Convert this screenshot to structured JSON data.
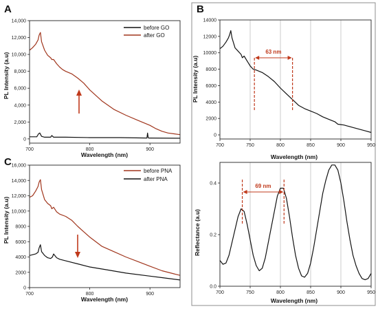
{
  "colors": {
    "brown": "#a0351c",
    "black": "#111111",
    "grid": "#bfbfbf",
    "annot": "#c0391b"
  },
  "panel_labels": [
    "A",
    "B",
    "C"
  ],
  "chart_data": [
    {
      "id": "A",
      "type": "line",
      "xlabel": "Wavelength (nm)",
      "ylabel": "PL Intensity (a.u)",
      "xlim": [
        700,
        950
      ],
      "ylim": [
        -500,
        14000
      ],
      "xticks": [
        700,
        800,
        900
      ],
      "xtick_labels": [
        "700",
        "800",
        "900"
      ],
      "yticks": [
        0,
        2000,
        4000,
        6000,
        8000,
        10000,
        12000,
        14000
      ],
      "ytick_labels": [
        "0",
        "2,000",
        "4,000",
        "6,000",
        "8,000",
        "10,000",
        "12,000",
        "14,000"
      ],
      "grid": false,
      "legend": "top-right",
      "series": [
        {
          "name": "before GO",
          "color": "black",
          "x": [
            700,
            710,
            712,
            715,
            717,
            720,
            725,
            735,
            737,
            740,
            760,
            800,
            850,
            895,
            896,
            897,
            898,
            900,
            950
          ],
          "y": [
            250,
            250,
            250,
            600,
            700,
            300,
            200,
            200,
            400,
            200,
            200,
            150,
            150,
            100,
            700,
            150,
            100,
            100,
            80
          ]
        },
        {
          "name": "after GO",
          "color": "brown",
          "x": [
            700,
            705,
            710,
            714,
            716,
            718,
            720,
            725,
            730,
            735,
            737,
            740,
            745,
            750,
            755,
            760,
            770,
            780,
            790,
            800,
            820,
            840,
            860,
            880,
            900,
            910,
            920,
            930,
            940,
            950
          ],
          "y": [
            10500,
            10800,
            11200,
            11700,
            12300,
            12600,
            11500,
            10500,
            9900,
            9600,
            9400,
            9400,
            8900,
            8500,
            8200,
            8000,
            7700,
            7200,
            6600,
            5800,
            4500,
            3500,
            2800,
            2200,
            1600,
            1200,
            900,
            700,
            600,
            500
          ]
        }
      ],
      "annotations": [
        "arrow-up"
      ]
    },
    {
      "id": "C",
      "type": "line",
      "xlabel": "Wavelength (nm)",
      "ylabel": "PL Intensity (a.u)",
      "xlim": [
        700,
        950
      ],
      "ylim": [
        0,
        16000
      ],
      "xticks": [
        700,
        800,
        900
      ],
      "xtick_labels": [
        "700",
        "800",
        "900"
      ],
      "yticks": [
        0,
        2000,
        4000,
        6000,
        8000,
        10000,
        12000,
        14000,
        16000
      ],
      "ytick_labels": [
        "0",
        "2000",
        "4000",
        "6000",
        "8000",
        "10,000",
        "12,000",
        "14,000",
        "16,000"
      ],
      "grid": false,
      "legend": "top-right",
      "series": [
        {
          "name": "before PNA",
          "color": "brown",
          "x": [
            700,
            705,
            710,
            714,
            716,
            718,
            720,
            725,
            730,
            735,
            737,
            740,
            745,
            750,
            760,
            770,
            780,
            790,
            800,
            820,
            840,
            860,
            880,
            900,
            920,
            940,
            950
          ],
          "y": [
            11800,
            12000,
            12600,
            13200,
            13800,
            14100,
            12800,
            11500,
            11000,
            10700,
            10300,
            10500,
            9900,
            9600,
            9300,
            8800,
            8000,
            7300,
            6600,
            5400,
            4700,
            4000,
            3400,
            2800,
            2200,
            1800,
            1600
          ]
        },
        {
          "name": "after PNA",
          "color": "black",
          "x": [
            700,
            710,
            714,
            716,
            718,
            720,
            725,
            730,
            735,
            738,
            740,
            745,
            750,
            760,
            780,
            800,
            830,
            860,
            900,
            920,
            950
          ],
          "y": [
            4200,
            4400,
            4600,
            5200,
            5600,
            4700,
            4200,
            3900,
            3800,
            4000,
            4400,
            3900,
            3700,
            3500,
            3100,
            2700,
            2300,
            1900,
            1500,
            1300,
            1000
          ]
        }
      ],
      "annotations": [
        "arrow-down"
      ]
    },
    {
      "id": "B-top",
      "type": "line",
      "xlabel": "Wavelength (nm)",
      "ylabel": "PL Intensity (a.u)",
      "xlim": [
        700,
        950
      ],
      "ylim": [
        -500,
        14000
      ],
      "xticks": [
        700,
        750,
        800,
        850,
        900,
        950
      ],
      "xtick_labels": [
        "700",
        "750",
        "800",
        "850",
        "900",
        "950"
      ],
      "yticks": [
        0,
        2000,
        4000,
        6000,
        8000,
        10000,
        12000,
        14000
      ],
      "ytick_labels": [
        "0",
        "2000",
        "4000",
        "6000",
        "8000",
        "10000",
        "12000",
        "14000"
      ],
      "grid": true,
      "series": [
        {
          "color": "black",
          "x": [
            700,
            705,
            710,
            714,
            716,
            718,
            720,
            725,
            730,
            735,
            737,
            740,
            745,
            750,
            755,
            760,
            770,
            780,
            790,
            800,
            810,
            820,
            830,
            840,
            850,
            860,
            870,
            880,
            890,
            895,
            900,
            905,
            910,
            920,
            930,
            940,
            950
          ],
          "y": [
            10500,
            10800,
            11300,
            11800,
            12200,
            12700,
            11800,
            10600,
            10200,
            9800,
            9400,
            9600,
            9000,
            8400,
            8000,
            7900,
            7600,
            7100,
            6500,
            5700,
            5000,
            4300,
            3600,
            3200,
            2900,
            2600,
            2200,
            1900,
            1600,
            1300,
            1250,
            1200,
            1100,
            900,
            700,
            500,
            300
          ]
        }
      ],
      "annotation": {
        "label": "63 nm",
        "x1": 757,
        "x2": 820
      }
    },
    {
      "id": "B-bottom",
      "type": "line",
      "xlabel": "Wavelength (nm)",
      "ylabel": "Reflectance (a.u)",
      "xlim": [
        700,
        950
      ],
      "ylim": [
        0,
        0.48
      ],
      "xticks": [
        700,
        750,
        800,
        850,
        900,
        950
      ],
      "xtick_labels": [
        "700",
        "750",
        "800",
        "850",
        "900",
        "950"
      ],
      "yticks": [
        0,
        0.2,
        0.4
      ],
      "ytick_labels": [
        "0.0",
        "0.2",
        "0.4"
      ],
      "grid": true,
      "series": [
        {
          "color": "black",
          "x": [
            700,
            705,
            710,
            715,
            720,
            725,
            730,
            735,
            740,
            745,
            750,
            755,
            760,
            765,
            770,
            775,
            780,
            785,
            790,
            795,
            800,
            805,
            810,
            815,
            820,
            825,
            830,
            835,
            840,
            845,
            850,
            855,
            860,
            865,
            870,
            875,
            880,
            885,
            890,
            895,
            900,
            905,
            910,
            915,
            920,
            925,
            930,
            935,
            940,
            945,
            950
          ],
          "y": [
            0.1,
            0.085,
            0.09,
            0.12,
            0.17,
            0.22,
            0.27,
            0.3,
            0.29,
            0.24,
            0.18,
            0.12,
            0.08,
            0.06,
            0.07,
            0.11,
            0.17,
            0.23,
            0.29,
            0.35,
            0.38,
            0.38,
            0.34,
            0.27,
            0.19,
            0.12,
            0.07,
            0.04,
            0.035,
            0.05,
            0.09,
            0.15,
            0.22,
            0.29,
            0.36,
            0.41,
            0.45,
            0.47,
            0.47,
            0.45,
            0.4,
            0.33,
            0.25,
            0.18,
            0.12,
            0.08,
            0.05,
            0.03,
            0.025,
            0.03,
            0.05
          ]
        }
      ],
      "annotation": {
        "label": "69 nm",
        "x1": 737,
        "x2": 806
      }
    }
  ]
}
